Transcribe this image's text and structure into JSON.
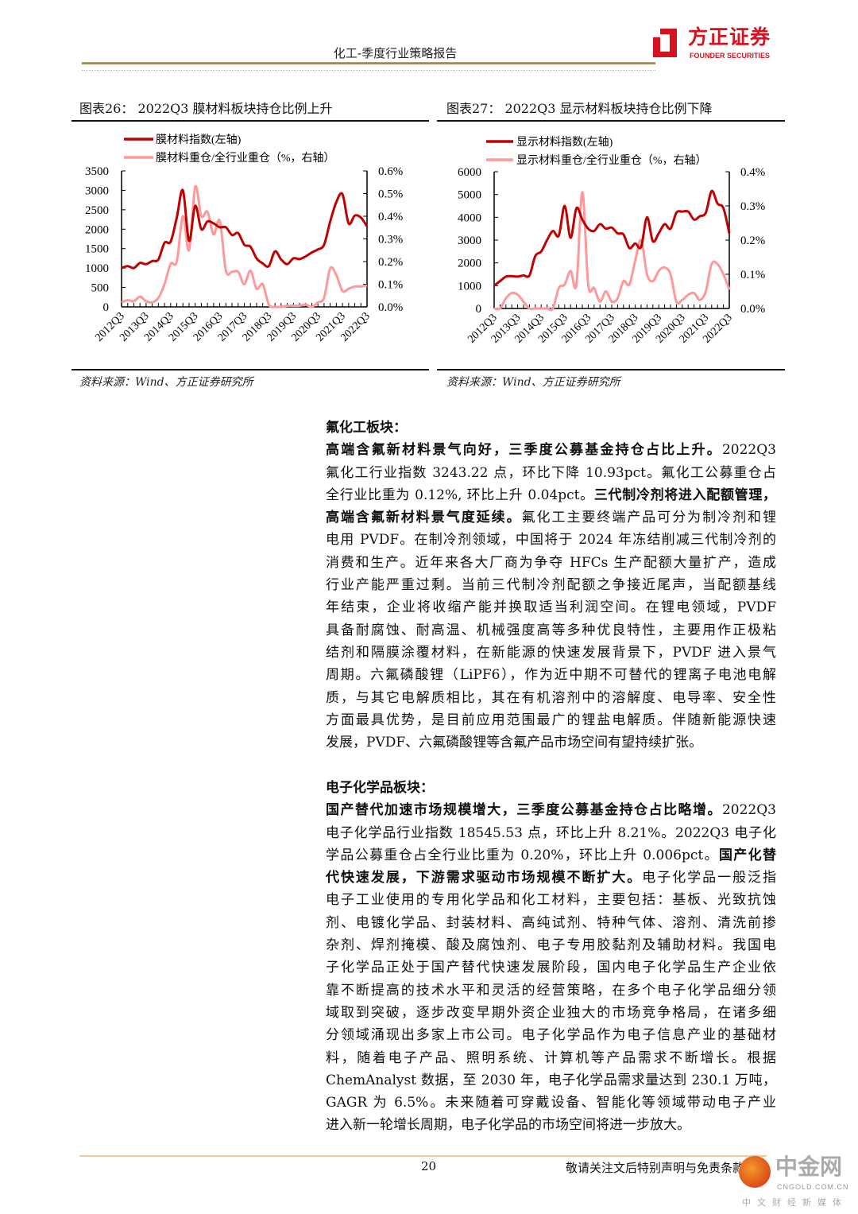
{
  "header": {
    "title": "化工-季度行业策略报告",
    "logo_cn": "方正证券",
    "logo_en": "FOUNDER SECURITIES"
  },
  "figures": [
    {
      "title": "图表26：  2022Q3 膜材料板块持仓比例上升",
      "source": "资料来源：Wind、方正证券研究所"
    },
    {
      "title": "图表27：  2022Q3 显示材料板块持仓比例下降",
      "source": "资料来源：Wind、方正证券研究所"
    }
  ],
  "chart_data": [
    {
      "type": "line",
      "title": "2022Q3 膜材料板块持仓比例上升",
      "x_tick_labels": [
        "2012Q3",
        "2013Q3",
        "2014Q3",
        "2015Q3",
        "2016Q3",
        "2017Q3",
        "2018Q3",
        "2019Q3",
        "2020Q3",
        "2021Q3",
        "2022Q3"
      ],
      "x_start": "2012Q3",
      "x_end": "2022Q3",
      "frequency": "quarterly",
      "y_left": {
        "range": [
          0,
          3500
        ],
        "ticks": [
          "0",
          "500",
          "1000",
          "1500",
          "2000",
          "2500",
          "3000",
          "3500"
        ]
      },
      "y_right": {
        "range": [
          0,
          0.6
        ],
        "ticks": [
          "0.0%",
          "0.1%",
          "0.2%",
          "0.3%",
          "0.4%",
          "0.5%",
          "0.6%"
        ]
      },
      "legend_placement": "top",
      "grid": false,
      "series": [
        {
          "name": "膜材料指数(左轴)",
          "axis": "left",
          "color": "#c00000",
          "values": [
            1000,
            1050,
            1000,
            1130,
            1100,
            1180,
            1220,
            1650,
            1680,
            2300,
            3000,
            1700,
            2600,
            2000,
            2200,
            2150,
            2050,
            2050,
            1850,
            1900,
            1600,
            1550,
            1250,
            1120,
            1050,
            1430,
            1220,
            1100,
            1250,
            1230,
            1300,
            1400,
            1480,
            1600,
            2200,
            2700,
            2900,
            2150,
            2350,
            2300,
            2070
          ]
        },
        {
          "name": "膜材料重仓/全行业重仓（%，右轴）",
          "axis": "right",
          "color": "#ff9999",
          "values": [
            0.02,
            0.03,
            0.025,
            0.045,
            0.025,
            0.02,
            0.04,
            0.1,
            0.19,
            0.2,
            0.4,
            0.25,
            0.53,
            0.4,
            0.42,
            0.32,
            0.38,
            0.16,
            0.155,
            0.155,
            0.1,
            0.16,
            0.08,
            0.1,
            0.01,
            0.0,
            0.0,
            0.005,
            0.005,
            0.005,
            0.01,
            0.0,
            0.02,
            0.04,
            0.17,
            0.14,
            0.07,
            0.08,
            0.09,
            0.09,
            0.095
          ]
        }
      ]
    },
    {
      "type": "line",
      "title": "2022Q3 显示材料板块持仓比例下降",
      "x_tick_labels": [
        "2012Q3",
        "2013Q3",
        "2014Q3",
        "2015Q3",
        "2016Q3",
        "2017Q3",
        "2018Q3",
        "2019Q3",
        "2020Q3",
        "2021Q3",
        "2022Q3"
      ],
      "x_start": "2012Q3",
      "x_end": "2022Q3",
      "frequency": "quarterly",
      "y_left": {
        "range": [
          0,
          6000
        ],
        "ticks": [
          "0",
          "1000",
          "2000",
          "3000",
          "4000",
          "5000",
          "6000"
        ]
      },
      "y_right": {
        "range": [
          0,
          0.4
        ],
        "ticks": [
          "0.0%",
          "0.1%",
          "0.2%",
          "0.3%",
          "0.4%"
        ]
      },
      "legend_placement": "top",
      "grid": false,
      "series": [
        {
          "name": "显示材料指数(左轴)",
          "axis": "left",
          "color": "#c00000",
          "values": [
            1000,
            1200,
            1400,
            1420,
            1400,
            1450,
            1450,
            2300,
            2500,
            3000,
            3400,
            3200,
            4500,
            3100,
            4400,
            3900,
            3500,
            3400,
            3700,
            3500,
            3550,
            3300,
            3250,
            2650,
            2850,
            2700,
            4000,
            2950,
            3300,
            3700,
            3500,
            4200,
            4250,
            4250,
            3900,
            4050,
            4200,
            5150,
            4600,
            4400,
            3300
          ]
        },
        {
          "name": "显示材料重仓/全行业重仓（%，右轴）",
          "axis": "right",
          "color": "#ff9999",
          "values": [
            0,
            0,
            0.03,
            0.045,
            0.04,
            0.02,
            0,
            0,
            0,
            0,
            0,
            0.06,
            0.07,
            0.11,
            0.07,
            0.34,
            0.07,
            0.06,
            0.02,
            0.05,
            0.02,
            0.03,
            0.08,
            0.07,
            0.14,
            0.2,
            0.1,
            0.08,
            0.11,
            0.12,
            0.1,
            0.02,
            0.025,
            0.04,
            0.045,
            0.025,
            0.05,
            0.13,
            0.13,
            0.1,
            0.055
          ]
        }
      ]
    }
  ],
  "sections": [
    {
      "heading": "氟化工板块：",
      "lines": [
        [
          {
            "t": "高端含氟新材料景气向好，三季度公募基金持仓占比上升。",
            "b": true
          },
          {
            "t": "2022Q3"
          }
        ],
        [
          {
            "t": "氟化工行业指数 3243.22 点，环比下降 10.93pct。氟化工公募重仓占"
          }
        ],
        [
          {
            "t": "全行业比重为 0.12%, 环比上升 0.04pct。"
          },
          {
            "t": "三代制冷剂将进入配额管理，",
            "b": true
          }
        ],
        [
          {
            "t": "高端含氟新材料景气度延续。",
            "b": true
          },
          {
            "t": "氟化工主要终端产品可分为制冷剂和锂"
          }
        ],
        [
          {
            "t": "电用 PVDF。在制冷剂领域，中国将于 2024 年冻结削减三代制冷剂的"
          }
        ],
        [
          {
            "t": "消费和生产。近年来各大厂商为争夺 HFCs 生产配额大量扩产，造成"
          }
        ],
        [
          {
            "t": "行业产能严重过剩。当前三代制冷剂配额之争接近尾声，当配额基线"
          }
        ],
        [
          {
            "t": "年结束，企业将收缩产能并换取适当利润空间。在锂电领域，PVDF"
          }
        ],
        [
          {
            "t": "具备耐腐蚀、耐高温、机械强度高等多种优良特性，主要用作正极粘"
          }
        ],
        [
          {
            "t": "结剂和隔膜涂覆材料，在新能源的快速发展背景下，PVDF 进入景气"
          }
        ],
        [
          {
            "t": "周期。六氟磷酸锂（LiPF6），作为近中期不可替代的锂离子电池电解"
          }
        ],
        [
          {
            "t": "质，与其它电解质相比，其在有机溶剂中的溶解度、电导率、安全性"
          }
        ],
        [
          {
            "t": "方面最具优势，是目前应用范围最广的锂盐电解质。伴随新能源快速"
          }
        ],
        [
          {
            "t": "发展，PVDF、六氟磷酸锂等含氟产品市场空间有望持续扩张。"
          }
        ]
      ]
    },
    {
      "heading": "电子化学品板块：",
      "lines": [
        [
          {
            "t": "国产替代加速市场规模增大，三季度公募基金持仓占比略增。",
            "b": true
          },
          {
            "t": "2022Q3"
          }
        ],
        [
          {
            "t": "电子化学品行业指数 18545.53 点，环比上升 8.21%。2022Q3 电子化"
          }
        ],
        [
          {
            "t": "学品公募重仓占全行业比重为 0.20%，环比上升 0.006pct。"
          },
          {
            "t": "国产化替",
            "b": true
          }
        ],
        [
          {
            "t": "代快速发展，下游需求驱动市场规模不断扩大。",
            "b": true
          },
          {
            "t": "电子化学品一般泛指"
          }
        ],
        [
          {
            "t": "电子工业使用的专用化学品和化工材料，主要包括：基板、光致抗蚀"
          }
        ],
        [
          {
            "t": "剂、电镀化学品、封装材料、高纯试剂、特种气体、溶剂、清洗前掺"
          }
        ],
        [
          {
            "t": "杂剂、焊剂掩模、酸及腐蚀剂、电子专用胶黏剂及辅助材料。我国电"
          }
        ],
        [
          {
            "t": "子化学品正处于国产替代快速发展阶段，国内电子化学品生产企业依"
          }
        ],
        [
          {
            "t": "靠不断提高的技术水平和灵活的经营策略，在多个电子化学品细分领"
          }
        ],
        [
          {
            "t": "域取到突破，逐步改变早期外资企业独大的市场竞争格局，在诸多细"
          }
        ],
        [
          {
            "t": "分领域涌现出多家上市公司。电子化学品作为电子信息产业的基础材"
          }
        ],
        [
          {
            "t": "料，随着电子产品、照明系统、计算机等产品需求不断增长。根据"
          }
        ],
        [
          {
            "t": "ChemAnalyst 数据，至 2030 年，电子化学品需求量达到 230.1 万吨，"
          }
        ],
        [
          {
            "t": "GAGR 为 6.5%。未来随着可穿戴设备、智能化等领域带动电子产业"
          }
        ],
        [
          {
            "t": "进入新一轮增长周期，电子化学品的市场空间将进一步放大。"
          }
        ]
      ]
    }
  ],
  "footer": {
    "page": "20",
    "disclaimer": "敬请关注文后特别声明与免责条款"
  },
  "watermark": {
    "cn": "中金网",
    "en": "CNGOLD.COM.CN",
    "sub": "中文财经新媒体"
  }
}
